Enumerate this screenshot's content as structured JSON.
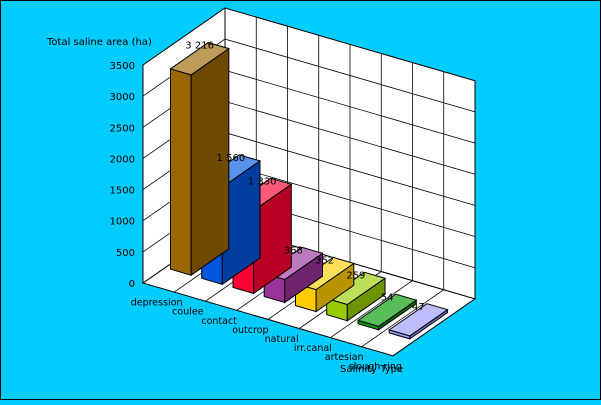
{
  "chart_data": {
    "type": "bar",
    "title": "",
    "ylabel": "Total saline area (ha)",
    "xlabel": "Salinity Type",
    "categories": [
      "depression",
      "coulee",
      "contact",
      "outcrop",
      "natural",
      "irr.canal",
      "artesian",
      "slough ring"
    ],
    "values": [
      3216,
      1560,
      1330,
      368,
      352,
      259,
      54,
      47
    ],
    "value_labels": [
      "3 216",
      "1 560",
      "1 330",
      "368",
      "352",
      "259",
      "54",
      "47"
    ],
    "yticks": [
      "0",
      "500",
      "1000",
      "1500",
      "2000",
      "2500",
      "3000",
      "3500"
    ],
    "ylim": [
      0,
      3500
    ],
    "grid": true,
    "legend": "none",
    "colors": [
      "#996600",
      "#0055dd",
      "#ff0033",
      "#993399",
      "#ffcc00",
      "#99cc00",
      "#009900",
      "#9999ff"
    ],
    "background": "#00ccff",
    "wall_color": "#ffffff"
  }
}
